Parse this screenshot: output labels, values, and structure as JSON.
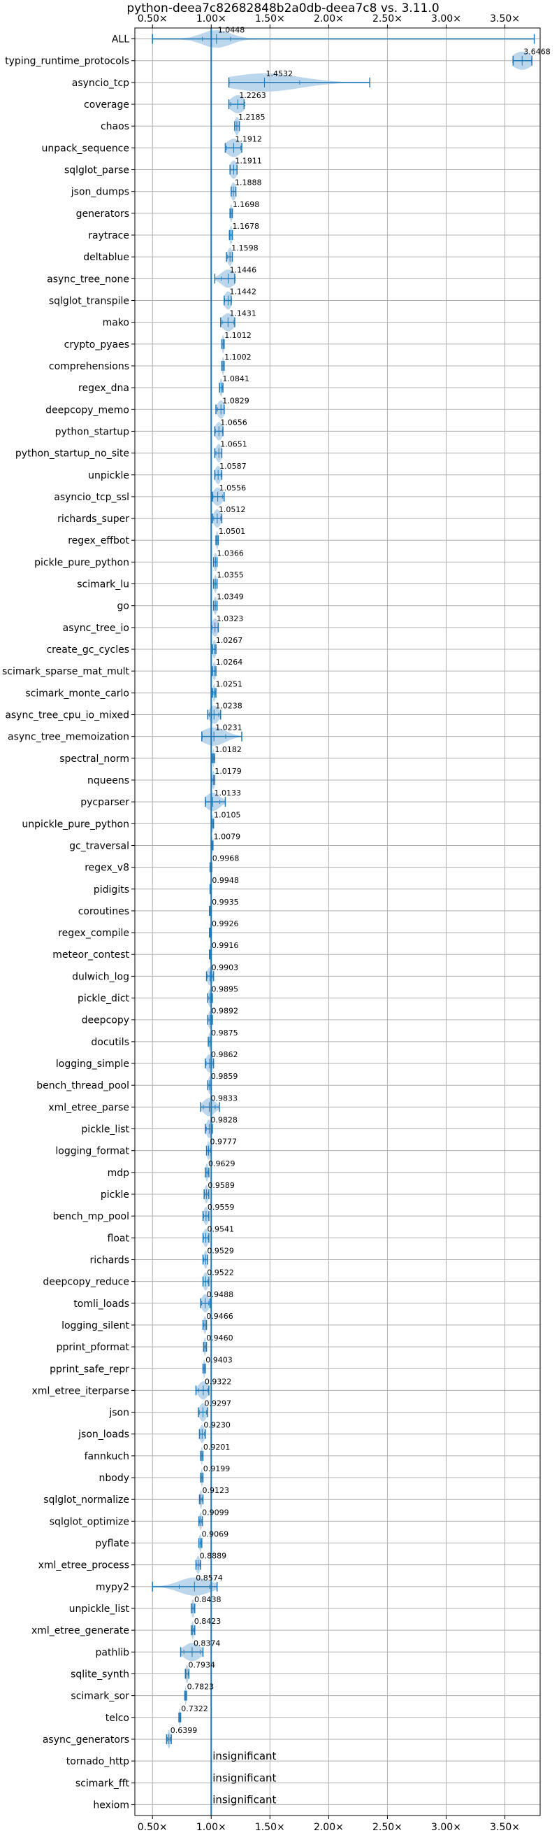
{
  "chart_data": {
    "type": "violin",
    "title": "python-deea7c82682848b2a0db-deea7c8 vs. 3.11.0",
    "xlim": [
      0.35,
      3.8
    ],
    "xticks": [
      0.5,
      1.0,
      1.5,
      2.0,
      2.5,
      3.0,
      3.5
    ],
    "xtick_labels": [
      "0.50×",
      "1.00×",
      "1.50×",
      "2.00×",
      "2.50×",
      "3.00×",
      "3.50×"
    ],
    "reference_line": 1.0,
    "grid": true,
    "colors": {
      "violin": "#1f77b4",
      "violin_fill": "#a6c8e6",
      "grid": "#b0b0b0"
    },
    "benchmarks": [
      {
        "name": "ALL",
        "label": "1.0448",
        "median": 1.0448,
        "min": 0.5,
        "max": 3.75,
        "spread": 0.12
      },
      {
        "name": "typing_runtime_protocols",
        "label": "3.6468",
        "median": 3.6468,
        "min": 3.57,
        "max": 3.73,
        "spread": 0.08
      },
      {
        "name": "asyncio_tcp",
        "label": "1.4532",
        "median": 1.4532,
        "min": 1.15,
        "max": 2.35,
        "spread": 0.3
      },
      {
        "name": "coverage",
        "label": "1.2263",
        "median": 1.2263,
        "min": 1.15,
        "max": 1.28,
        "spread": 0.06
      },
      {
        "name": "chaos",
        "label": "1.2185",
        "median": 1.2185,
        "min": 1.2,
        "max": 1.24,
        "spread": 0.02
      },
      {
        "name": "unpack_sequence",
        "label": "1.1912",
        "median": 1.1912,
        "min": 1.12,
        "max": 1.26,
        "spread": 0.06
      },
      {
        "name": "sqlglot_parse",
        "label": "1.1911",
        "median": 1.1911,
        "min": 1.16,
        "max": 1.22,
        "spread": 0.03
      },
      {
        "name": "json_dumps",
        "label": "1.1888",
        "median": 1.1888,
        "min": 1.17,
        "max": 1.21,
        "spread": 0.02
      },
      {
        "name": "generators",
        "label": "1.1698",
        "median": 1.1698,
        "min": 1.16,
        "max": 1.18,
        "spread": 0.01
      },
      {
        "name": "raytrace",
        "label": "1.1678",
        "median": 1.1678,
        "min": 1.155,
        "max": 1.18,
        "spread": 0.012
      },
      {
        "name": "deltablue",
        "label": "1.1598",
        "median": 1.1598,
        "min": 1.13,
        "max": 1.18,
        "spread": 0.02
      },
      {
        "name": "async_tree_none",
        "label": "1.1446",
        "median": 1.1446,
        "min": 1.03,
        "max": 1.2,
        "spread": 0.06
      },
      {
        "name": "sqlglot_transpile",
        "label": "1.1442",
        "median": 1.1442,
        "min": 1.11,
        "max": 1.17,
        "spread": 0.03
      },
      {
        "name": "mako",
        "label": "1.1431",
        "median": 1.1431,
        "min": 1.08,
        "max": 1.2,
        "spread": 0.05
      },
      {
        "name": "crypto_pyaes",
        "label": "1.1012",
        "median": 1.1012,
        "min": 1.09,
        "max": 1.11,
        "spread": 0.01
      },
      {
        "name": "comprehensions",
        "label": "1.1002",
        "median": 1.1002,
        "min": 1.09,
        "max": 1.11,
        "spread": 0.01
      },
      {
        "name": "regex_dna",
        "label": "1.0841",
        "median": 1.0841,
        "min": 1.07,
        "max": 1.1,
        "spread": 0.012
      },
      {
        "name": "deepcopy_memo",
        "label": "1.0829",
        "median": 1.0829,
        "min": 1.04,
        "max": 1.11,
        "spread": 0.03
      },
      {
        "name": "python_startup",
        "label": "1.0656",
        "median": 1.0656,
        "min": 1.03,
        "max": 1.1,
        "spread": 0.03
      },
      {
        "name": "python_startup_no_site",
        "label": "1.0651",
        "median": 1.0651,
        "min": 1.03,
        "max": 1.09,
        "spread": 0.025
      },
      {
        "name": "unpickle",
        "label": "1.0587",
        "median": 1.0587,
        "min": 1.03,
        "max": 1.09,
        "spread": 0.025
      },
      {
        "name": "asyncio_tcp_ssl",
        "label": "1.0556",
        "median": 1.0556,
        "min": 1.01,
        "max": 1.11,
        "spread": 0.04
      },
      {
        "name": "richards_super",
        "label": "1.0512",
        "median": 1.0512,
        "min": 1.01,
        "max": 1.09,
        "spread": 0.03
      },
      {
        "name": "regex_effbot",
        "label": "1.0501",
        "median": 1.0501,
        "min": 1.04,
        "max": 1.06,
        "spread": 0.01
      },
      {
        "name": "pickle_pure_python",
        "label": "1.0366",
        "median": 1.0366,
        "min": 1.02,
        "max": 1.05,
        "spread": 0.015
      },
      {
        "name": "scimark_lu",
        "label": "1.0355",
        "median": 1.0355,
        "min": 1.02,
        "max": 1.05,
        "spread": 0.012
      },
      {
        "name": "go",
        "label": "1.0349",
        "median": 1.0349,
        "min": 1.02,
        "max": 1.05,
        "spread": 0.015
      },
      {
        "name": "async_tree_io",
        "label": "1.0323",
        "median": 1.0323,
        "min": 1.0,
        "max": 1.06,
        "spread": 0.025
      },
      {
        "name": "create_gc_cycles",
        "label": "1.0267",
        "median": 1.0267,
        "min": 1.01,
        "max": 1.04,
        "spread": 0.015
      },
      {
        "name": "scimark_sparse_mat_mult",
        "label": "1.0264",
        "median": 1.0264,
        "min": 1.01,
        "max": 1.04,
        "spread": 0.015
      },
      {
        "name": "scimark_monte_carlo",
        "label": "1.0251",
        "median": 1.0251,
        "min": 1.01,
        "max": 1.04,
        "spread": 0.01
      },
      {
        "name": "async_tree_cpu_io_mixed",
        "label": "1.0238",
        "median": 1.0238,
        "min": 0.97,
        "max": 1.08,
        "spread": 0.04
      },
      {
        "name": "async_tree_memoization",
        "label": "1.0231",
        "median": 1.0231,
        "min": 0.92,
        "max": 1.26,
        "spread": 0.1
      },
      {
        "name": "spectral_norm",
        "label": "1.0182",
        "median": 1.0182,
        "min": 1.01,
        "max": 1.03,
        "spread": 0.008
      },
      {
        "name": "nqueens",
        "label": "1.0179",
        "median": 1.0179,
        "min": 1.0,
        "max": 1.03,
        "spread": 0.012
      },
      {
        "name": "pycparser",
        "label": "1.0133",
        "median": 1.0133,
        "min": 0.95,
        "max": 1.12,
        "spread": 0.06
      },
      {
        "name": "unpickle_pure_python",
        "label": "1.0105",
        "median": 1.0105,
        "min": 1.0,
        "max": 1.02,
        "spread": 0.008
      },
      {
        "name": "gc_traversal",
        "label": "1.0079",
        "median": 1.0079,
        "min": 1.0,
        "max": 1.015,
        "spread": 0.006
      },
      {
        "name": "regex_v8",
        "label": "0.9968",
        "median": 0.9968,
        "min": 0.99,
        "max": 1.005,
        "spread": 0.006
      },
      {
        "name": "pidigits",
        "label": "0.9948",
        "median": 0.9948,
        "min": 0.99,
        "max": 1.0,
        "spread": 0.005
      },
      {
        "name": "coroutines",
        "label": "0.9935",
        "median": 0.9935,
        "min": 0.985,
        "max": 1.0,
        "spread": 0.006
      },
      {
        "name": "regex_compile",
        "label": "0.9926",
        "median": 0.9926,
        "min": 0.985,
        "max": 1.0,
        "spread": 0.006
      },
      {
        "name": "meteor_contest",
        "label": "0.9916",
        "median": 0.9916,
        "min": 0.985,
        "max": 1.0,
        "spread": 0.006
      },
      {
        "name": "dulwich_log",
        "label": "0.9903",
        "median": 0.9903,
        "min": 0.96,
        "max": 1.02,
        "spread": 0.025
      },
      {
        "name": "pickle_dict",
        "label": "0.9895",
        "median": 0.9895,
        "min": 0.97,
        "max": 1.01,
        "spread": 0.015
      },
      {
        "name": "deepcopy",
        "label": "0.9892",
        "median": 0.9892,
        "min": 0.97,
        "max": 1.01,
        "spread": 0.015
      },
      {
        "name": "docutils",
        "label": "0.9875",
        "median": 0.9875,
        "min": 0.975,
        "max": 1.0,
        "spread": 0.01
      },
      {
        "name": "logging_simple",
        "label": "0.9862",
        "median": 0.9862,
        "min": 0.95,
        "max": 1.02,
        "spread": 0.03
      },
      {
        "name": "bench_thread_pool",
        "label": "0.9859",
        "median": 0.9859,
        "min": 0.97,
        "max": 1.0,
        "spread": 0.012
      },
      {
        "name": "xml_etree_parse",
        "label": "0.9833",
        "median": 0.9833,
        "min": 0.91,
        "max": 1.07,
        "spread": 0.05
      },
      {
        "name": "pickle_list",
        "label": "0.9828",
        "median": 0.9828,
        "min": 0.95,
        "max": 1.01,
        "spread": 0.025
      },
      {
        "name": "logging_format",
        "label": "0.9777",
        "median": 0.9777,
        "min": 0.96,
        "max": 1.0,
        "spread": 0.015
      },
      {
        "name": "mdp",
        "label": "0.9629",
        "median": 0.9629,
        "min": 0.95,
        "max": 0.98,
        "spread": 0.012
      },
      {
        "name": "pickle",
        "label": "0.9589",
        "median": 0.9589,
        "min": 0.94,
        "max": 0.98,
        "spread": 0.015
      },
      {
        "name": "bench_mp_pool",
        "label": "0.9559",
        "median": 0.9559,
        "min": 0.93,
        "max": 0.98,
        "spread": 0.02
      },
      {
        "name": "float",
        "label": "0.9541",
        "median": 0.9541,
        "min": 0.93,
        "max": 0.98,
        "spread": 0.02
      },
      {
        "name": "richards",
        "label": "0.9529",
        "median": 0.9529,
        "min": 0.93,
        "max": 0.97,
        "spread": 0.015
      },
      {
        "name": "deepcopy_reduce",
        "label": "0.9522",
        "median": 0.9522,
        "min": 0.93,
        "max": 0.98,
        "spread": 0.02
      },
      {
        "name": "tomli_loads",
        "label": "0.9488",
        "median": 0.9488,
        "min": 0.91,
        "max": 0.99,
        "spread": 0.03
      },
      {
        "name": "logging_silent",
        "label": "0.9466",
        "median": 0.9466,
        "min": 0.93,
        "max": 0.96,
        "spread": 0.012
      },
      {
        "name": "pprint_pformat",
        "label": "0.9460",
        "median": 0.946,
        "min": 0.935,
        "max": 0.96,
        "spread": 0.01
      },
      {
        "name": "pprint_safe_repr",
        "label": "0.9403",
        "median": 0.9403,
        "min": 0.93,
        "max": 0.95,
        "spread": 0.008
      },
      {
        "name": "xml_etree_iterparse",
        "label": "0.9322",
        "median": 0.9322,
        "min": 0.87,
        "max": 0.98,
        "spread": 0.04
      },
      {
        "name": "json",
        "label": "0.9297",
        "median": 0.9297,
        "min": 0.89,
        "max": 0.97,
        "spread": 0.03
      },
      {
        "name": "json_loads",
        "label": "0.9230",
        "median": 0.923,
        "min": 0.9,
        "max": 0.95,
        "spread": 0.02
      },
      {
        "name": "fannkuch",
        "label": "0.9201",
        "median": 0.9201,
        "min": 0.91,
        "max": 0.93,
        "spread": 0.008
      },
      {
        "name": "nbody",
        "label": "0.9199",
        "median": 0.9199,
        "min": 0.91,
        "max": 0.93,
        "spread": 0.008
      },
      {
        "name": "sqlglot_normalize",
        "label": "0.9123",
        "median": 0.9123,
        "min": 0.9,
        "max": 0.93,
        "spread": 0.01
      },
      {
        "name": "sqlglot_optimize",
        "label": "0.9099",
        "median": 0.9099,
        "min": 0.895,
        "max": 0.925,
        "spread": 0.01
      },
      {
        "name": "pyflate",
        "label": "0.9069",
        "median": 0.9069,
        "min": 0.895,
        "max": 0.92,
        "spread": 0.01
      },
      {
        "name": "xml_etree_process",
        "label": "0.8889",
        "median": 0.8889,
        "min": 0.87,
        "max": 0.91,
        "spread": 0.015
      },
      {
        "name": "mypy2",
        "label": "0.8574",
        "median": 0.8574,
        "min": 0.5,
        "max": 1.05,
        "spread": 0.13
      },
      {
        "name": "unpickle_list",
        "label": "0.8438",
        "median": 0.8438,
        "min": 0.83,
        "max": 0.86,
        "spread": 0.012
      },
      {
        "name": "xml_etree_generate",
        "label": "0.8423",
        "median": 0.8423,
        "min": 0.83,
        "max": 0.86,
        "spread": 0.01
      },
      {
        "name": "pathlib",
        "label": "0.8374",
        "median": 0.8374,
        "min": 0.74,
        "max": 0.93,
        "spread": 0.07
      },
      {
        "name": "sqlite_synth",
        "label": "0.7934",
        "median": 0.7934,
        "min": 0.78,
        "max": 0.81,
        "spread": 0.012
      },
      {
        "name": "scimark_sor",
        "label": "0.7823",
        "median": 0.7823,
        "min": 0.775,
        "max": 0.79,
        "spread": 0.006
      },
      {
        "name": "telco",
        "label": "0.7322",
        "median": 0.7322,
        "min": 0.725,
        "max": 0.74,
        "spread": 0.006
      },
      {
        "name": "async_generators",
        "label": "0.6399",
        "median": 0.6399,
        "min": 0.62,
        "max": 0.66,
        "spread": 0.012
      },
      {
        "name": "tornado_http",
        "label": "insignificant",
        "median": null
      },
      {
        "name": "scimark_fft",
        "label": "insignificant",
        "median": null
      },
      {
        "name": "hexiom",
        "label": "insignificant",
        "median": null
      }
    ]
  }
}
